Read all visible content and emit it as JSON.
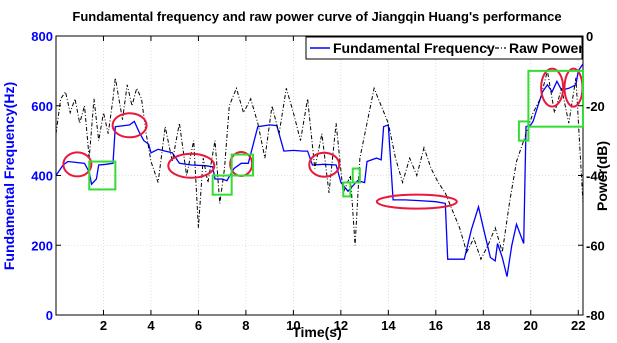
{
  "chart_data": {
    "type": "line",
    "title": "Fundamental frequency and raw power curve of Jiangqin Huang's performance",
    "xlabel": "Time(s)",
    "ylabel": "Fundamental Frequency(Hz)",
    "y2label": "Power(dB)",
    "xlim": [
      0,
      22.2
    ],
    "ylim": [
      0,
      800
    ],
    "y2lim": [
      -80,
      0
    ],
    "xticks": [
      "2",
      "4",
      "6",
      "8",
      "10",
      "12",
      "14",
      "16",
      "18",
      "20",
      "22"
    ],
    "yticks": [
      "0",
      "200",
      "400",
      "600",
      "800"
    ],
    "y2ticks": [
      "-80",
      "-60",
      "-40",
      "-20",
      "0"
    ],
    "legend_position": "top-right",
    "series": [
      {
        "name": "Fundamental Frequency",
        "axis": "left",
        "color": "#0000ff",
        "style": "solid",
        "points": [
          [
            0.0,
            400
          ],
          [
            0.3,
            430
          ],
          [
            0.5,
            440
          ],
          [
            1.2,
            435
          ],
          [
            1.4,
            410
          ],
          [
            1.5,
            375
          ],
          [
            1.7,
            390
          ],
          [
            1.8,
            430
          ],
          [
            2.1,
            432
          ],
          [
            2.4,
            435
          ],
          [
            2.5,
            540
          ],
          [
            3.1,
            545
          ],
          [
            3.3,
            555
          ],
          [
            3.5,
            525
          ],
          [
            3.7,
            500
          ],
          [
            3.9,
            490
          ],
          [
            4.0,
            465
          ],
          [
            4.3,
            475
          ],
          [
            4.6,
            470
          ],
          [
            4.9,
            465
          ],
          [
            5.2,
            435
          ],
          [
            5.7,
            430
          ],
          [
            6.3,
            428
          ],
          [
            6.6,
            425
          ],
          [
            6.7,
            390
          ],
          [
            7.0,
            390
          ],
          [
            7.2,
            385
          ],
          [
            7.5,
            420
          ],
          [
            7.8,
            435
          ],
          [
            8.1,
            435
          ],
          [
            8.5,
            540
          ],
          [
            9.0,
            545
          ],
          [
            9.3,
            543
          ],
          [
            9.6,
            470
          ],
          [
            10.0,
            472
          ],
          [
            10.4,
            470
          ],
          [
            10.6,
            470
          ],
          [
            10.8,
            430
          ],
          [
            11.3,
            432
          ],
          [
            11.8,
            430
          ],
          [
            12.0,
            380
          ],
          [
            12.3,
            355
          ],
          [
            12.5,
            370
          ],
          [
            12.7,
            385
          ],
          [
            13.0,
            380
          ],
          [
            13.1,
            440
          ],
          [
            13.5,
            450
          ],
          [
            13.7,
            445
          ],
          [
            13.8,
            540
          ],
          [
            14.0,
            545
          ],
          [
            14.2,
            330
          ],
          [
            14.7,
            330
          ],
          [
            15.3,
            328
          ],
          [
            16.0,
            325
          ],
          [
            16.4,
            320
          ],
          [
            16.5,
            160
          ],
          [
            16.8,
            160
          ],
          [
            17.2,
            160
          ],
          [
            17.5,
            245
          ],
          [
            17.8,
            310
          ],
          [
            18.0,
            250
          ],
          [
            18.3,
            165
          ],
          [
            18.5,
            155
          ],
          [
            18.6,
            205
          ],
          [
            18.8,
            165
          ],
          [
            19.0,
            110
          ],
          [
            19.2,
            200
          ],
          [
            19.4,
            260
          ],
          [
            19.7,
            205
          ],
          [
            19.8,
            540
          ],
          [
            20.0,
            545
          ],
          [
            20.1,
            555
          ],
          [
            20.3,
            600
          ],
          [
            20.5,
            640
          ],
          [
            20.7,
            660
          ],
          [
            20.9,
            640
          ],
          [
            21.1,
            670
          ],
          [
            21.3,
            645
          ],
          [
            21.6,
            650
          ],
          [
            21.9,
            660
          ],
          [
            22.0,
            700
          ],
          [
            22.2,
            720
          ]
        ]
      },
      {
        "name": "Raw Power",
        "axis": "right",
        "color": "#000000",
        "style": "dashdot",
        "points": [
          [
            0.0,
            -28
          ],
          [
            0.2,
            -18
          ],
          [
            0.4,
            -16
          ],
          [
            0.6,
            -22
          ],
          [
            0.8,
            -18
          ],
          [
            1.0,
            -25
          ],
          [
            1.2,
            -20
          ],
          [
            1.4,
            -35
          ],
          [
            1.6,
            -18
          ],
          [
            1.8,
            -30
          ],
          [
            2.0,
            -22
          ],
          [
            2.2,
            -28
          ],
          [
            2.4,
            -18
          ],
          [
            2.5,
            -12
          ],
          [
            2.8,
            -24
          ],
          [
            3.0,
            -14
          ],
          [
            3.2,
            -20
          ],
          [
            3.4,
            -15
          ],
          [
            3.6,
            -18
          ],
          [
            3.8,
            -28
          ],
          [
            4.0,
            -36
          ],
          [
            4.3,
            -42
          ],
          [
            4.6,
            -26
          ],
          [
            4.9,
            -36
          ],
          [
            5.2,
            -25
          ],
          [
            5.5,
            -40
          ],
          [
            5.8,
            -30
          ],
          [
            6.0,
            -55
          ],
          [
            6.2,
            -35
          ],
          [
            6.4,
            -42
          ],
          [
            6.7,
            -30
          ],
          [
            6.9,
            -48
          ],
          [
            7.1,
            -38
          ],
          [
            7.3,
            -20
          ],
          [
            7.6,
            -15
          ],
          [
            7.9,
            -22
          ],
          [
            8.2,
            -18
          ],
          [
            8.5,
            -25
          ],
          [
            8.8,
            -35
          ],
          [
            9.1,
            -20
          ],
          [
            9.4,
            -28
          ],
          [
            9.7,
            -15
          ],
          [
            10.0,
            -22
          ],
          [
            10.3,
            -30
          ],
          [
            10.6,
            -18
          ],
          [
            10.9,
            -38
          ],
          [
            11.2,
            -28
          ],
          [
            11.5,
            -45
          ],
          [
            11.8,
            -25
          ],
          [
            12.1,
            -45
          ],
          [
            12.4,
            -40
          ],
          [
            12.6,
            -60
          ],
          [
            12.8,
            -35
          ],
          [
            13.1,
            -25
          ],
          [
            13.4,
            -15
          ],
          [
            13.7,
            -20
          ],
          [
            14.0,
            -25
          ],
          [
            14.3,
            -35
          ],
          [
            14.6,
            -42
          ],
          [
            14.9,
            -35
          ],
          [
            15.2,
            -40
          ],
          [
            15.5,
            -32
          ],
          [
            15.8,
            -38
          ],
          [
            16.1,
            -42
          ],
          [
            16.4,
            -45
          ],
          [
            16.7,
            -50
          ],
          [
            17.0,
            -55
          ],
          [
            17.3,
            -62
          ],
          [
            17.6,
            -58
          ],
          [
            17.9,
            -64
          ],
          [
            18.2,
            -60
          ],
          [
            18.5,
            -55
          ],
          [
            18.8,
            -62
          ],
          [
            19.1,
            -48
          ],
          [
            19.4,
            -36
          ],
          [
            19.7,
            -30
          ],
          [
            19.9,
            -26
          ],
          [
            20.1,
            -22
          ],
          [
            20.4,
            -18
          ],
          [
            20.7,
            -10
          ],
          [
            21.0,
            -22
          ],
          [
            21.3,
            -15
          ],
          [
            21.6,
            -25
          ],
          [
            21.9,
            -12
          ],
          [
            22.2,
            -48
          ]
        ]
      }
    ],
    "annotations": [
      {
        "shape": "ellipse",
        "color": "#e8193c",
        "x": 0.9,
        "y": 432
      },
      {
        "shape": "ellipse",
        "color": "#e8193c",
        "x": 3.1,
        "y": 544
      },
      {
        "shape": "ellipse",
        "color": "#e8193c",
        "x": 5.7,
        "y": 428
      },
      {
        "shape": "ellipse",
        "color": "#e8193c",
        "x": 7.8,
        "y": 433
      },
      {
        "shape": "ellipse",
        "color": "#e8193c",
        "x": 11.3,
        "y": 431
      },
      {
        "shape": "ellipse",
        "color": "#e8193c",
        "x": 15.2,
        "y": 325
      },
      {
        "shape": "ellipse",
        "color": "#e8193c",
        "x": 20.9,
        "y": 652
      },
      {
        "shape": "ellipse",
        "color": "#e8193c",
        "x": 21.8,
        "y": 652
      },
      {
        "shape": "rect",
        "color": "#33dd33",
        "x0": 1.4,
        "x1": 2.5,
        "y0": 360,
        "y1": 440
      },
      {
        "shape": "rect",
        "color": "#33dd33",
        "x0": 6.6,
        "x1": 7.4,
        "y0": 345,
        "y1": 400
      },
      {
        "shape": "rect",
        "color": "#33dd33",
        "x0": 7.4,
        "x1": 8.3,
        "y0": 400,
        "y1": 460
      },
      {
        "shape": "rect",
        "color": "#33dd33",
        "x0": 12.1,
        "x1": 12.4,
        "y0": 340,
        "y1": 380
      },
      {
        "shape": "rect",
        "color": "#33dd33",
        "x0": 12.5,
        "x1": 12.8,
        "y0": 380,
        "y1": 420
      },
      {
        "shape": "rect",
        "color": "#33dd33",
        "x0": 19.5,
        "x1": 19.9,
        "y0": 500,
        "y1": 555
      },
      {
        "shape": "rect",
        "color": "#33dd33",
        "x0": 19.9,
        "x1": 22.2,
        "y0": 540,
        "y1": 700
      }
    ]
  }
}
